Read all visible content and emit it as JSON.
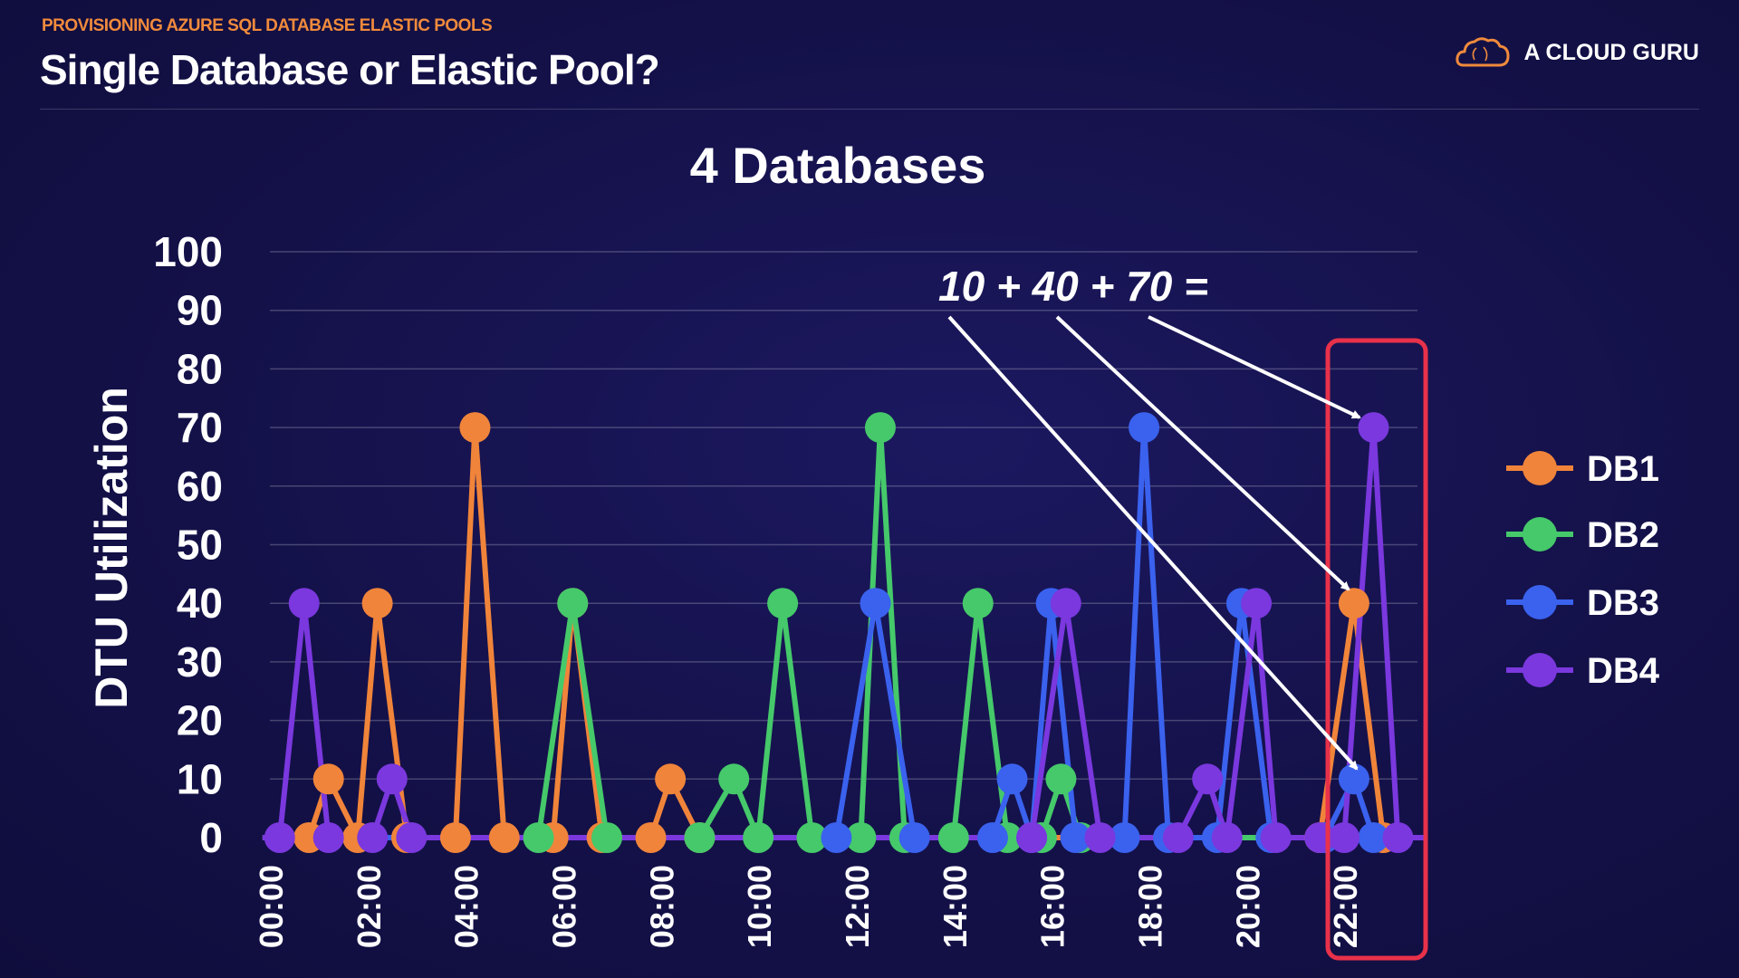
{
  "header": {
    "kicker": "PROVISIONING AZURE SQL DATABASE ELASTIC POOLS",
    "title": "Single Database or Elastic Pool?"
  },
  "brand": {
    "name": "A CLOUD GURU",
    "logo_icon": "cloud-icon",
    "accent_color": "#f08a3c"
  },
  "annotation": {
    "text": "10 + 40 + 70 =",
    "highlight_color": "#e8314a"
  },
  "chart_data": {
    "type": "line",
    "title": "4 Databases",
    "ylabel": "DTU Utilization",
    "xlabel": "",
    "ylim": [
      0,
      100
    ],
    "yticks": [
      "0",
      "10",
      "20",
      "30",
      "40",
      "50",
      "60",
      "70",
      "80",
      "90",
      "100"
    ],
    "xlim": [
      0,
      23.5
    ],
    "xticks": [
      {
        "x": 0,
        "label": "00:00"
      },
      {
        "x": 2,
        "label": "02:00"
      },
      {
        "x": 4,
        "label": "04:00"
      },
      {
        "x": 6,
        "label": "06:00"
      },
      {
        "x": 8,
        "label": "08:00"
      },
      {
        "x": 10,
        "label": "10:00"
      },
      {
        "x": 12,
        "label": "12:00"
      },
      {
        "x": 14,
        "label": "14:00"
      },
      {
        "x": 16,
        "label": "16:00"
      },
      {
        "x": 18,
        "label": "18:00"
      },
      {
        "x": 20,
        "label": "20:00"
      },
      {
        "x": 22,
        "label": "22:00"
      }
    ],
    "grid": true,
    "legend_position": "right",
    "series": [
      {
        "name": "DB1",
        "color": "#f0843a",
        "points": [
          [
            0.8,
            0
          ],
          [
            1.2,
            10
          ],
          [
            1.8,
            0
          ],
          [
            2.2,
            40
          ],
          [
            2.8,
            0
          ],
          [
            3.8,
            0
          ],
          [
            4.2,
            70
          ],
          [
            4.8,
            0
          ],
          [
            5.8,
            0
          ],
          [
            6.2,
            40
          ],
          [
            6.8,
            0
          ],
          [
            7.8,
            0
          ],
          [
            8.2,
            10
          ],
          [
            8.8,
            0
          ],
          [
            21.5,
            0
          ],
          [
            22.2,
            40
          ],
          [
            22.8,
            0
          ]
        ]
      },
      {
        "name": "DB2",
        "color": "#45c96a",
        "points": [
          [
            5.5,
            0
          ],
          [
            6.2,
            40
          ],
          [
            6.9,
            0
          ],
          [
            8.8,
            0
          ],
          [
            9.5,
            10
          ],
          [
            10.0,
            0
          ],
          [
            10.5,
            40
          ],
          [
            11.1,
            0
          ],
          [
            12.1,
            0
          ],
          [
            12.5,
            70
          ],
          [
            13.0,
            0
          ],
          [
            14.0,
            0
          ],
          [
            14.5,
            40
          ],
          [
            15.1,
            0
          ],
          [
            15.8,
            0
          ],
          [
            16.2,
            10
          ],
          [
            16.6,
            0
          ]
        ]
      },
      {
        "name": "DB3",
        "color": "#3a62ee",
        "points": [
          [
            11.6,
            0
          ],
          [
            12.4,
            40
          ],
          [
            13.2,
            0
          ],
          [
            14.8,
            0
          ],
          [
            15.2,
            10
          ],
          [
            15.6,
            0
          ],
          [
            16.0,
            40
          ],
          [
            16.5,
            0
          ],
          [
            17.5,
            0
          ],
          [
            17.9,
            70
          ],
          [
            18.4,
            0
          ],
          [
            19.4,
            0
          ],
          [
            19.9,
            40
          ],
          [
            20.5,
            0
          ],
          [
            21.6,
            0
          ],
          [
            22.2,
            10
          ],
          [
            22.6,
            0
          ]
        ]
      },
      {
        "name": "DB4",
        "color": "#7a38de",
        "points": [
          [
            0.2,
            0
          ],
          [
            0.7,
            40
          ],
          [
            1.2,
            0
          ],
          [
            2.1,
            0
          ],
          [
            2.5,
            10
          ],
          [
            2.9,
            0
          ],
          [
            15.6,
            0
          ],
          [
            16.3,
            40
          ],
          [
            17.0,
            0
          ],
          [
            18.6,
            0
          ],
          [
            19.2,
            10
          ],
          [
            19.6,
            0
          ],
          [
            20.2,
            40
          ],
          [
            20.6,
            0
          ],
          [
            21.5,
            0
          ],
          [
            22.0,
            0
          ],
          [
            22.6,
            70
          ],
          [
            23.1,
            0
          ]
        ]
      }
    ]
  }
}
